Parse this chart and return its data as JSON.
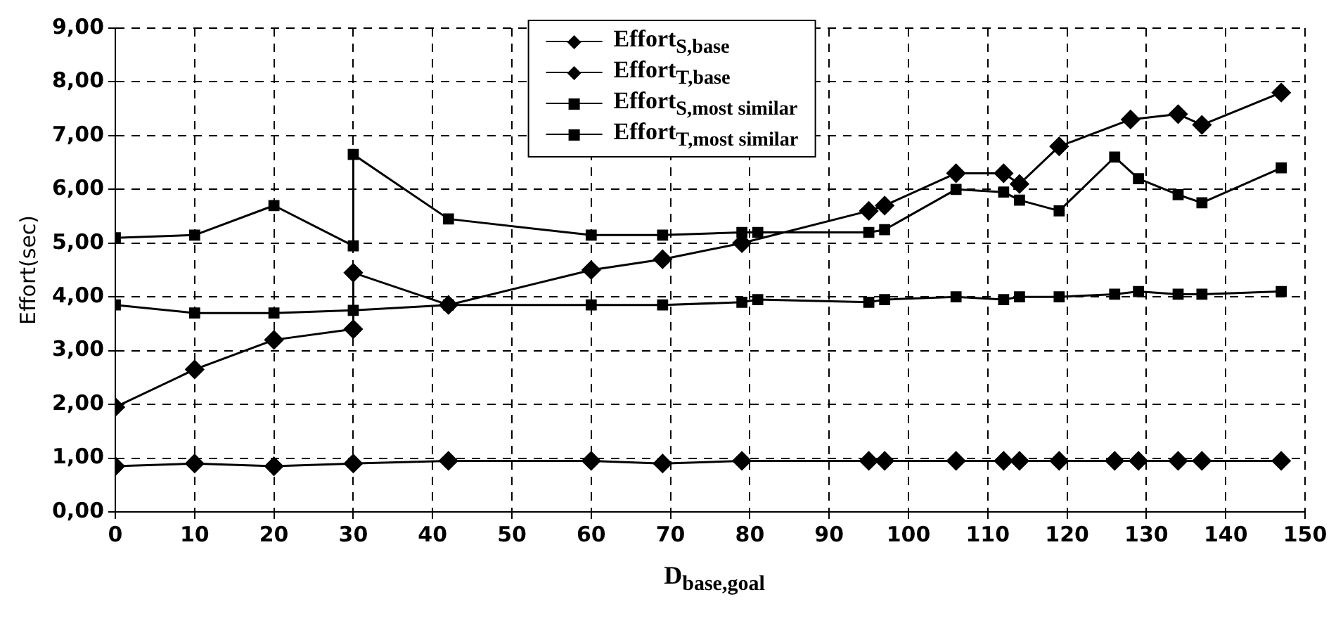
{
  "chart_data": {
    "type": "line",
    "xlabel": "D$_{base,goal}$",
    "ylabel": "Effort(sec)",
    "series": [
      {
        "name": "Effort$_{S,base}$",
        "color": "#000000",
        "marker": "diamond",
        "x": [
          0,
          10,
          20,
          30,
          42,
          60,
          69,
          79,
          95,
          97,
          106,
          112,
          114,
          119,
          126,
          129,
          134,
          137,
          147
        ],
        "values": [
          0.85,
          0.9,
          0.85,
          0.9,
          0.95,
          0.95,
          0.9,
          0.95,
          0.95,
          0.95,
          0.95,
          0.95,
          0.95,
          0.95,
          0.95,
          0.95,
          0.95,
          0.95,
          0.95
        ]
      },
      {
        "name": "Effort$_{T,base}$",
        "color": "#000000",
        "marker": "diamond",
        "x": [
          0,
          10,
          20,
          30,
          30,
          42,
          60,
          69,
          79,
          95,
          97,
          106,
          112,
          114,
          119,
          128,
          134,
          137,
          147
        ],
        "values": [
          1.95,
          2.65,
          3.2,
          3.4,
          4.45,
          3.85,
          4.5,
          4.7,
          5.0,
          5.6,
          5.7,
          6.3,
          6.3,
          6.1,
          6.8,
          7.3,
          7.4,
          7.2,
          7.8
        ]
      },
      {
        "name": "Effort$_{S,most similar}$",
        "color": "#000000",
        "marker": "square",
        "x": [
          0,
          10,
          20,
          30,
          42,
          60,
          69,
          79,
          81,
          95,
          97,
          106,
          112,
          114,
          119,
          126,
          129,
          134,
          137,
          147
        ],
        "values": [
          3.85,
          3.7,
          3.7,
          3.75,
          3.85,
          3.85,
          3.85,
          3.9,
          3.95,
          3.9,
          3.95,
          4.0,
          3.95,
          4.0,
          4.0,
          4.05,
          4.1,
          4.05,
          4.05,
          4.1
        ]
      },
      {
        "name": "Effort$_{T,most similar}$",
        "color": "#000000",
        "marker": "square",
        "x": [
          0,
          10,
          20,
          30,
          30,
          42,
          60,
          69,
          79,
          81,
          95,
          97,
          106,
          112,
          114,
          119,
          126,
          129,
          134,
          137,
          147
        ],
        "values": [
          5.1,
          5.15,
          5.7,
          4.95,
          6.65,
          5.45,
          5.15,
          5.15,
          5.2,
          5.2,
          5.2,
          5.25,
          6.0,
          5.95,
          5.8,
          5.6,
          6.6,
          6.2,
          5.9,
          5.75,
          6.4
        ]
      }
    ],
    "xlim": [
      0,
      150
    ],
    "xticks": [
      0,
      10,
      20,
      30,
      40,
      50,
      60,
      70,
      80,
      90,
      100,
      110,
      120,
      130,
      140,
      150
    ],
    "ylim": [
      0,
      9
    ],
    "yticks": [
      {
        "value": 0,
        "label": "0,00"
      },
      {
        "value": 1,
        "label": "1,00"
      },
      {
        "value": 2,
        "label": "2,00"
      },
      {
        "value": 3,
        "label": "3,00"
      },
      {
        "value": 4,
        "label": "4,00"
      },
      {
        "value": 5,
        "label": "5,00"
      },
      {
        "value": 6,
        "label": "6,00"
      },
      {
        "value": 7,
        "label": "7,00"
      },
      {
        "value": 8,
        "label": "8,00"
      },
      {
        "value": 9,
        "label": "9,00"
      }
    ],
    "grid": true,
    "legend": "top",
    "line_style": "solid"
  }
}
